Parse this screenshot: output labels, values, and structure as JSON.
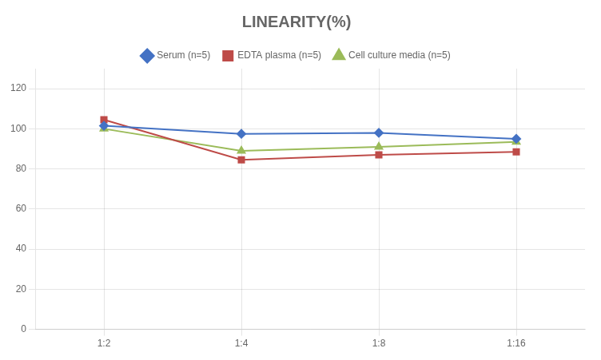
{
  "chart_data": {
    "type": "line",
    "title": "LINEARITY(%)",
    "categories": [
      "1:2",
      "1:4",
      "1:8",
      "1:16"
    ],
    "series": [
      {
        "name": "Serum (n=5)",
        "color": "#4472C4",
        "marker": "diamond",
        "values": [
          101.5,
          97.5,
          98.0,
          95.0
        ]
      },
      {
        "name": "EDTA plasma (n=5)",
        "color": "#BE4B48",
        "marker": "square",
        "values": [
          104.5,
          84.5,
          87.0,
          88.5
        ]
      },
      {
        "name": "Cell culture media (n=5)",
        "color": "#9BBB59",
        "marker": "triangle",
        "values": [
          100.0,
          89.0,
          91.0,
          93.5
        ]
      }
    ],
    "ylim": [
      0,
      130
    ],
    "yticks": [
      0,
      20,
      40,
      60,
      80,
      100,
      120
    ],
    "grid": true,
    "legend": "top"
  }
}
